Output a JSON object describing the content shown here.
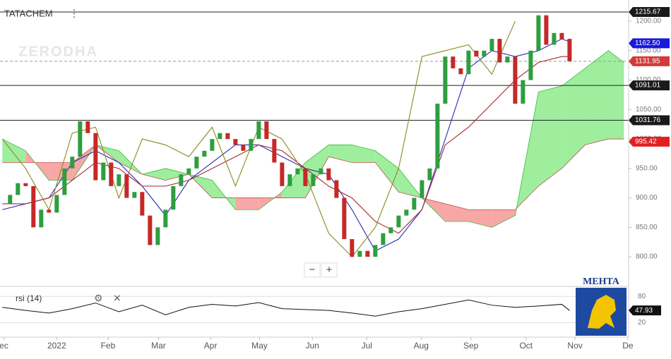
{
  "chart_data": {
    "type": "candlestick",
    "title": "TATACHEM",
    "menu_icon": "⋮",
    "watermark": "ZERODHA",
    "zoom_buttons": [
      "−",
      "+"
    ],
    "x": [
      0,
      1,
      2,
      3,
      4,
      5,
      6,
      7,
      8,
      9,
      10,
      11,
      12,
      13,
      14,
      15,
      16,
      17,
      18,
      19,
      20,
      21,
      22,
      23,
      24,
      25,
      26,
      27,
      28,
      29,
      30,
      31,
      32,
      33,
      34,
      35,
      36,
      37,
      38,
      39,
      40,
      41,
      42,
      43,
      44,
      45,
      46,
      47,
      48,
      49,
      50,
      51,
      52,
      53,
      54,
      55,
      56,
      57,
      58,
      59,
      60,
      61,
      62,
      63,
      64,
      65,
      66,
      67,
      68,
      69,
      70,
      71,
      72,
      73
    ],
    "close": [
      890,
      905,
      925,
      920,
      850,
      880,
      875,
      905,
      950,
      970,
      1030,
      1010,
      930,
      960,
      920,
      940,
      900,
      910,
      870,
      820,
      850,
      880,
      920,
      940,
      950,
      970,
      980,
      1000,
      1010,
      1000,
      990,
      980,
      1000,
      1030,
      1000,
      960,
      920,
      940,
      950,
      920,
      940,
      950,
      930,
      900,
      830,
      800,
      810,
      800,
      820,
      840,
      850,
      870,
      880,
      900,
      930,
      950,
      1060,
      1140,
      1120,
      1110,
      1150,
      1140,
      1150,
      1170,
      1130,
      1140,
      1060,
      1100,
      1150,
      1210,
      1160,
      1180,
      1170,
      1132
    ],
    "up_color": "#2e9e3f",
    "down_color": "#c62828",
    "xlim": [
      -0.3,
      80.6
    ],
    "xticks": [
      {
        "value": 0.2,
        "label": "ec"
      },
      {
        "value": 7,
        "label": "2022"
      },
      {
        "value": 13.6,
        "label": "Feb"
      },
      {
        "value": 20.1,
        "label": "Mar"
      },
      {
        "value": 26.8,
        "label": "Apr"
      },
      {
        "value": 33.1,
        "label": "May"
      },
      {
        "value": 39.9,
        "label": "Jun"
      },
      {
        "value": 46.9,
        "label": "Jul"
      },
      {
        "value": 53.9,
        "label": "Aug"
      },
      {
        "value": 60.3,
        "label": "Sep"
      },
      {
        "value": 67.4,
        "label": "Oct"
      },
      {
        "value": 73.7,
        "label": "Nov"
      },
      {
        "value": 80.5,
        "label": "De"
      }
    ],
    "ylim": [
      751,
      1236
    ],
    "yticks": [
      {
        "value": 800,
        "label": "800.00"
      },
      {
        "value": 850,
        "label": "850.00"
      },
      {
        "value": 900,
        "label": "900.00"
      },
      {
        "value": 950,
        "label": "950.00"
      },
      {
        "value": 1000,
        "label": "1000.00"
      },
      {
        "value": 1050,
        "label": "1050.00"
      },
      {
        "value": 1100,
        "label": "1100.00"
      },
      {
        "value": 1150,
        "label": "1150.00"
      },
      {
        "value": 1200,
        "label": "1200.00"
      }
    ],
    "cloud": {
      "x": [
        0,
        3,
        6,
        9,
        12,
        15,
        18,
        21,
        24,
        27,
        30,
        33,
        36,
        39,
        42,
        45,
        48,
        51,
        54,
        57,
        60,
        63,
        66,
        69,
        72,
        75,
        78,
        80
      ],
      "span_a": [
        1000,
        980,
        930,
        930,
        990,
        980,
        940,
        950,
        940,
        930,
        880,
        880,
        910,
        960,
        990,
        990,
        980,
        950,
        900,
        860,
        860,
        850,
        870,
        1080,
        1090,
        1120,
        1150,
        1130
      ],
      "span_b": [
        960,
        960,
        960,
        960,
        990,
        960,
        940,
        930,
        940,
        900,
        900,
        900,
        900,
        900,
        970,
        960,
        960,
        910,
        900,
        890,
        880,
        880,
        880,
        920,
        950,
        990,
        1000,
        1000
      ],
      "up_color": "#7ee87e",
      "down_color": "#f58a8a"
    },
    "lines": [
      {
        "color": "#2a2ab8",
        "x": [
          0,
          3,
          6,
          9,
          12,
          15,
          18,
          21,
          24,
          27,
          30,
          33,
          36,
          39,
          42,
          45,
          48,
          51,
          54,
          57,
          60,
          63,
          66,
          69,
          72,
          73
        ],
        "values": [
          880,
          890,
          900,
          960,
          980,
          960,
          920,
          870,
          930,
          960,
          990,
          990,
          970,
          950,
          940,
          880,
          810,
          830,
          880,
          1000,
          1120,
          1150,
          1140,
          1150,
          1170,
          1165
        ]
      },
      {
        "color": "#a52a2a",
        "x": [
          0,
          3,
          6,
          9,
          12,
          15,
          18,
          21,
          24,
          27,
          30,
          33,
          36,
          39,
          42,
          45,
          48,
          51,
          54,
          57,
          60,
          63,
          66,
          69,
          72,
          73
        ],
        "values": [
          890,
          890,
          900,
          930,
          960,
          950,
          920,
          920,
          930,
          950,
          970,
          990,
          980,
          950,
          920,
          900,
          860,
          840,
          880,
          990,
          1020,
          1060,
          1100,
          1130,
          1140,
          1140
        ]
      },
      {
        "color": "#8a8a1e",
        "x": [
          0,
          3,
          6,
          9,
          12,
          15,
          18,
          21,
          24,
          27,
          30,
          33,
          36,
          39,
          42,
          45,
          48,
          51,
          54,
          57,
          60,
          63,
          66
        ],
        "values": [
          1000,
          950,
          880,
          1010,
          1020,
          900,
          1000,
          990,
          970,
          1020,
          920,
          1020,
          1000,
          940,
          840,
          800,
          850,
          950,
          1140,
          1150,
          1160,
          1110,
          1200
        ]
      }
    ],
    "levels": [
      {
        "value": 1215.67,
        "label": "1215.67",
        "color": "#1a1a1a",
        "line": "solid"
      },
      {
        "value": 1162.5,
        "label": "1162.50",
        "color": "#1a1adb",
        "line": "none"
      },
      {
        "value": 1131.95,
        "label": "1131.95",
        "color": "#d43a3a",
        "line": "dashed"
      },
      {
        "value": 1091.01,
        "label": "1091.01",
        "color": "#1a1a1a",
        "line": "solid"
      },
      {
        "value": 1031.76,
        "label": "1031.76",
        "color": "#1a1a1a",
        "line": "solid"
      },
      {
        "value": 995.42,
        "label": "995.42",
        "color": "#e02020",
        "line": "none"
      }
    ],
    "rsi": {
      "label": "rsi (14)",
      "icons": [
        "⚙",
        "✕"
      ],
      "color": "#111111",
      "x": [
        0,
        3,
        6,
        9,
        12,
        15,
        18,
        21,
        24,
        27,
        30,
        33,
        36,
        39,
        42,
        45,
        48,
        51,
        54,
        57,
        60,
        63,
        66,
        69,
        72,
        73
      ],
      "values": [
        55,
        48,
        42,
        52,
        65,
        45,
        60,
        38,
        55,
        62,
        58,
        66,
        52,
        50,
        48,
        42,
        35,
        45,
        52,
        62,
        72,
        60,
        55,
        58,
        62,
        47.93
      ],
      "ylim": [
        -13,
        103
      ],
      "yticks": [
        80,
        20
      ],
      "last": {
        "value": 47.93,
        "label": "47.93"
      }
    },
    "logo": {
      "title": "MEHTA"
    }
  }
}
